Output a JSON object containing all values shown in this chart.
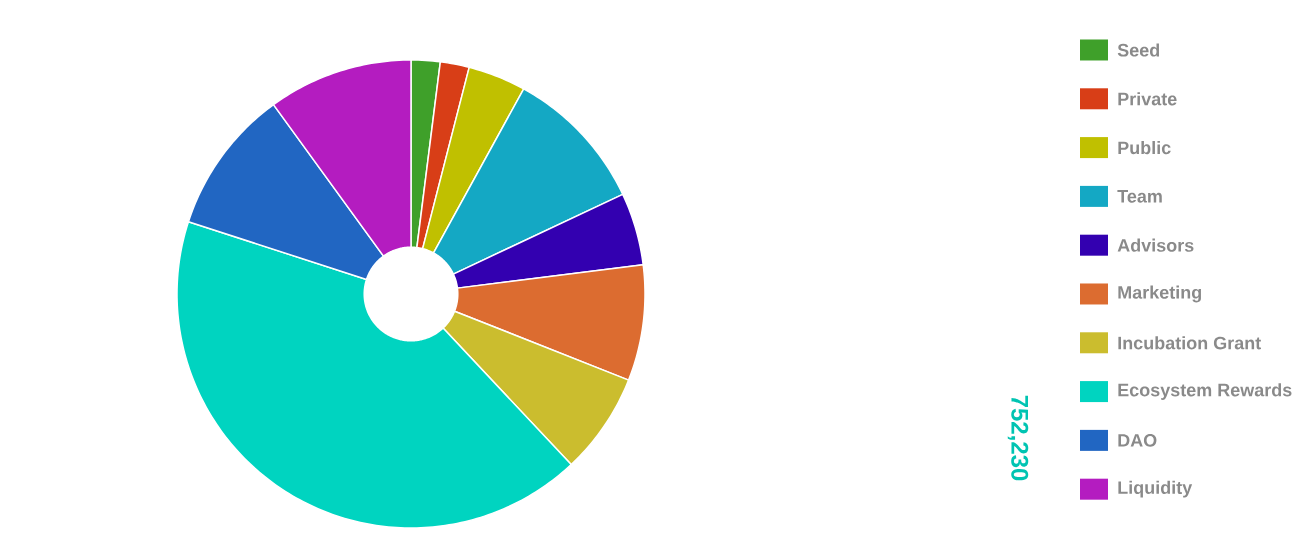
{
  "chart_data": {
    "type": "donut",
    "categories": [
      "Seed",
      "Private",
      "Public",
      "Team",
      "Advisors",
      "Marketing",
      "Incubation Grant",
      "Ecosystem Rewards",
      "DAO",
      "Liquidity"
    ],
    "values": [
      2,
      2,
      4,
      10,
      5,
      8,
      7,
      42,
      10,
      10
    ],
    "colors": [
      "#3fa02a",
      "#d83e17",
      "#c0c000",
      "#14a8c4",
      "#3300b0",
      "#dc6c30",
      "#cbbd2e",
      "#00d4c0",
      "#2166c2",
      "#b41cc0"
    ],
    "legend": "right",
    "annotations": [
      "752,230"
    ]
  }
}
